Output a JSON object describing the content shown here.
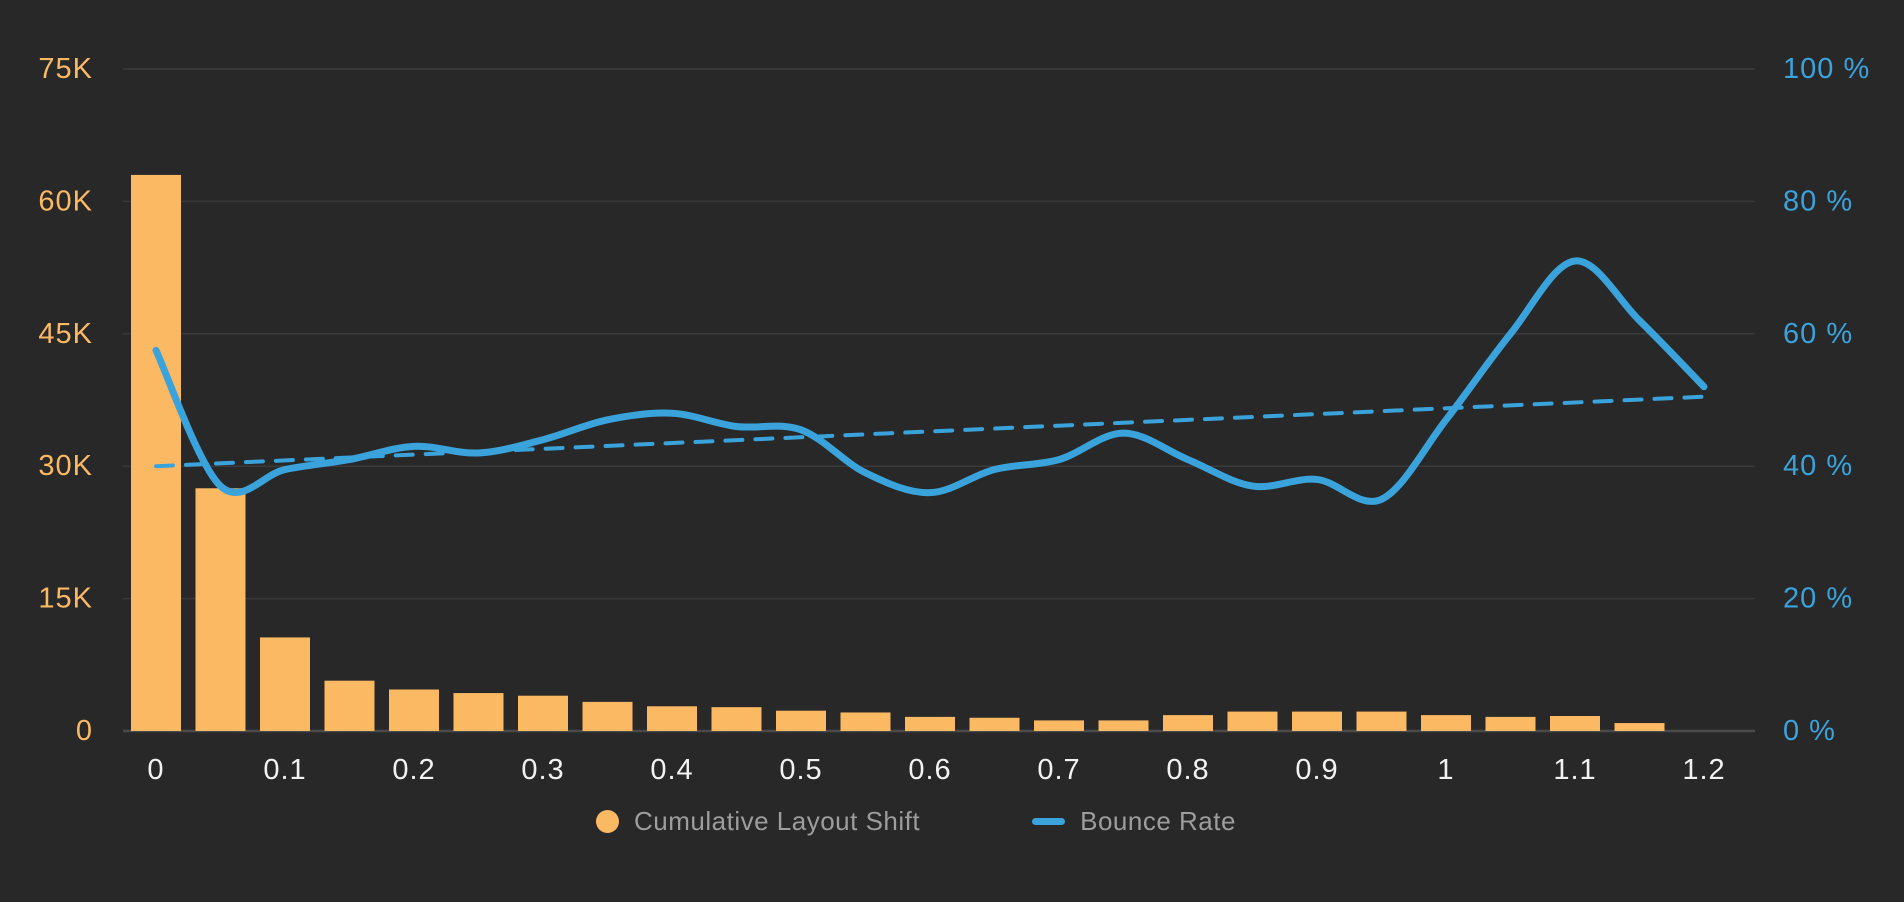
{
  "chart_data": {
    "type": "bar",
    "subtype": "combo-bar-and-line-dual-axis",
    "x_categories": [
      "0",
      "0.05",
      "0.1",
      "0.15",
      "0.2",
      "0.25",
      "0.3",
      "0.35",
      "0.4",
      "0.45",
      "0.5",
      "0.55",
      "0.6",
      "0.65",
      "0.7",
      "0.75",
      "0.8",
      "0.85",
      "0.9",
      "0.95",
      "1",
      "1.05",
      "1.1",
      "1.15",
      "1.2"
    ],
    "x_tick_labels": [
      "0",
      "0.1",
      "0.2",
      "0.3",
      "0.4",
      "0.5",
      "0.6",
      "0.7",
      "0.8",
      "0.9",
      "1",
      "1.1",
      "1.2"
    ],
    "series": [
      {
        "name": "Cumulative Layout Shift",
        "type": "bar",
        "axis": "left",
        "color": "#FBB964",
        "values": [
          63000,
          27500,
          10600,
          5700,
          4700,
          4300,
          4000,
          3300,
          2800,
          2700,
          2300,
          2100,
          1600,
          1500,
          1200,
          1200,
          1800,
          2200,
          2200,
          2200,
          1800,
          1600,
          1700,
          900,
          0
        ]
      },
      {
        "name": "Bounce Rate",
        "type": "line",
        "axis": "right",
        "color": "#3AA3DC",
        "values_percent": [
          57.5,
          37,
          39.5,
          41,
          43,
          42,
          44,
          47,
          48,
          46,
          45.5,
          39,
          36,
          39.5,
          41,
          45,
          41,
          37,
          38,
          35,
          47,
          60,
          71,
          62,
          52
        ]
      },
      {
        "name": "Bounce Rate trend",
        "type": "dashed-trend-line",
        "axis": "right",
        "color": "#3AA3DC",
        "start_percent": 40,
        "end_percent": 50.5
      }
    ],
    "left_axis": {
      "title": "",
      "tick_labels": [
        "0",
        "15K",
        "30K",
        "45K",
        "60K",
        "75K"
      ],
      "min": 0,
      "max": 75000,
      "label_color": "#FBB964"
    },
    "right_axis": {
      "title": "",
      "tick_labels": [
        "0 %",
        "20 %",
        "40 %",
        "60 %",
        "80 %",
        "100 %"
      ],
      "min": 0,
      "max": 100,
      "label_color": "#3AA3DC"
    },
    "x_axis": {
      "label_color": "#F2F2F2"
    },
    "grid": true,
    "legend_position": "bottom"
  },
  "legend": {
    "text_color": "#9D9D9D",
    "items": [
      {
        "label": "Cumulative Layout Shift",
        "marker": "circle",
        "color": "#FBB964"
      },
      {
        "label": "Bounce Rate",
        "marker": "dash",
        "color": "#3AA3DC"
      }
    ]
  },
  "colors": {
    "background": "#282828",
    "gridline": "#3A3A3A",
    "baseline": "#4A4A4A",
    "bar": "#FBB964",
    "line": "#3AA3DC"
  }
}
